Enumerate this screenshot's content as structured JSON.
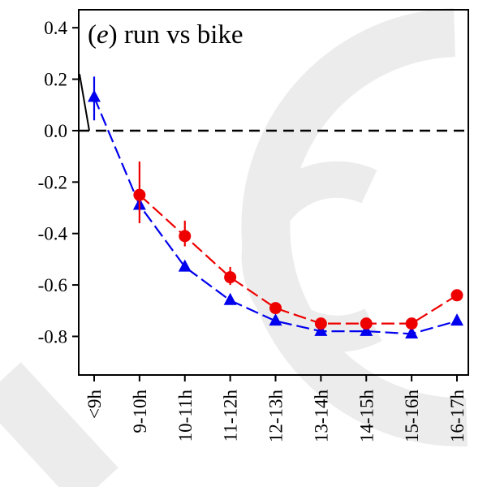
{
  "chart_data": {
    "type": "line",
    "title": "run vs bike",
    "panel_label": "e",
    "categories": [
      "<9h",
      "9-10h",
      "10-11h",
      "11-12h",
      "12-13h",
      "13-14h",
      "14-15h",
      "15-16h",
      "16-17h"
    ],
    "ylim": [
      -0.95,
      0.47
    ],
    "yticks": [
      0.4,
      0.2,
      0.0,
      -0.2,
      -0.4,
      -0.6,
      -0.8
    ],
    "ytick_labels": [
      "0.4",
      "0.2",
      "0.0",
      "-0.2",
      "-0.4",
      "-0.6",
      "-0.8"
    ],
    "reference_line": 0.0,
    "grid": false,
    "series": [
      {
        "marker": "triangle",
        "color": "#0000ee",
        "values": [
          0.13,
          -0.29,
          -0.53,
          -0.66,
          -0.74,
          -0.78,
          -0.78,
          -0.79,
          -0.74
        ],
        "error": [
          [
            0.04,
            0.21
          ],
          null,
          null,
          null,
          null,
          null,
          null,
          null,
          null
        ]
      },
      {
        "marker": "circle",
        "color": "#ee0000",
        "values": [
          null,
          -0.25,
          -0.41,
          -0.57,
          -0.69,
          -0.75,
          -0.75,
          -0.75,
          -0.64
        ],
        "error": [
          null,
          [
            -0.36,
            -0.12
          ],
          [
            -0.45,
            -0.35
          ],
          [
            -0.6,
            -0.53
          ],
          null,
          null,
          null,
          null,
          null
        ]
      }
    ],
    "extra_line": {
      "color": "#000000",
      "from": [
        0.22,
        0.0
      ]
    }
  }
}
